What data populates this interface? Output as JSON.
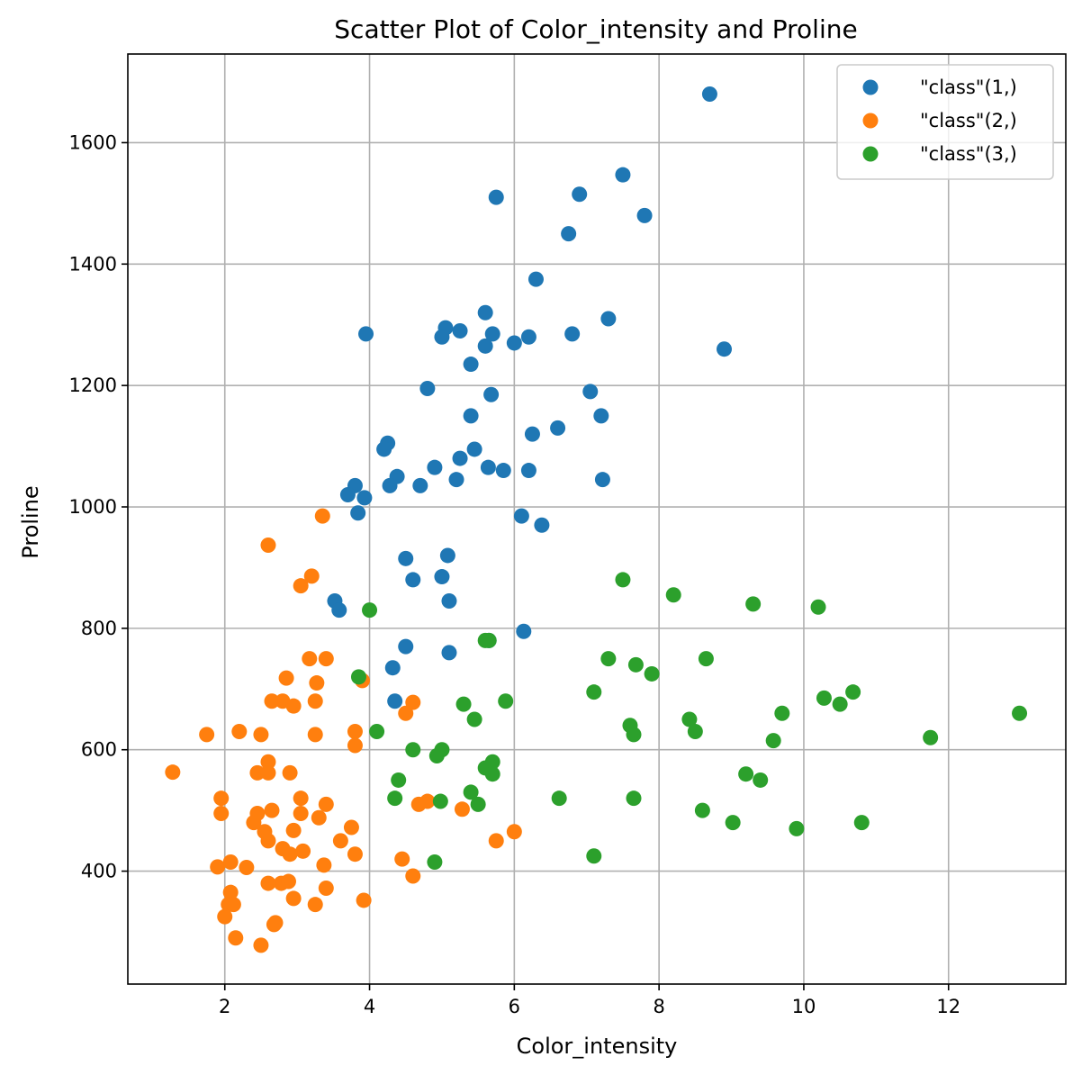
{
  "chart_data": {
    "type": "scatter",
    "title": "Scatter Plot of Color_intensity and Proline",
    "xlabel": "Color_intensity",
    "ylabel": "Proline",
    "xlim": [
      0.66,
      13.62
    ],
    "ylim": [
      214,
      1746
    ],
    "xticks": [
      2,
      4,
      6,
      8,
      10,
      12
    ],
    "yticks": [
      400,
      600,
      800,
      1000,
      1200,
      1400,
      1600
    ],
    "grid": true,
    "legend_position": "top-right",
    "series": [
      {
        "name": "\"class\"(1,)",
        "color": "#1f77b4",
        "points": [
          [
            8.7,
            1680
          ],
          [
            7.5,
            1547
          ],
          [
            6.9,
            1515
          ],
          [
            5.75,
            1510
          ],
          [
            7.8,
            1480
          ],
          [
            6.75,
            1450
          ],
          [
            6.3,
            1375
          ],
          [
            5.6,
            1320
          ],
          [
            7.3,
            1310
          ],
          [
            5.05,
            1295
          ],
          [
            5.25,
            1290
          ],
          [
            3.95,
            1285
          ],
          [
            5.7,
            1285
          ],
          [
            6.8,
            1285
          ],
          [
            5.0,
            1280
          ],
          [
            6.2,
            1280
          ],
          [
            6.0,
            1270
          ],
          [
            5.6,
            1265
          ],
          [
            8.9,
            1260
          ],
          [
            5.4,
            1235
          ],
          [
            4.8,
            1195
          ],
          [
            7.05,
            1190
          ],
          [
            5.68,
            1185
          ],
          [
            5.4,
            1150
          ],
          [
            7.2,
            1150
          ],
          [
            6.6,
            1130
          ],
          [
            6.25,
            1120
          ],
          [
            4.25,
            1105
          ],
          [
            4.2,
            1095
          ],
          [
            5.45,
            1095
          ],
          [
            5.25,
            1080
          ],
          [
            4.9,
            1065
          ],
          [
            5.64,
            1065
          ],
          [
            5.85,
            1060
          ],
          [
            6.2,
            1060
          ],
          [
            4.38,
            1050
          ],
          [
            5.2,
            1045
          ],
          [
            7.22,
            1045
          ],
          [
            4.7,
            1035
          ],
          [
            4.28,
            1035
          ],
          [
            3.8,
            1035
          ],
          [
            3.7,
            1020
          ],
          [
            3.93,
            1015
          ],
          [
            3.84,
            990
          ],
          [
            6.1,
            985
          ],
          [
            6.38,
            970
          ],
          [
            5.08,
            920
          ],
          [
            4.5,
            915
          ],
          [
            5.0,
            885
          ],
          [
            4.6,
            880
          ],
          [
            5.1,
            845
          ],
          [
            3.52,
            845
          ],
          [
            3.58,
            830
          ],
          [
            5.65,
            780
          ],
          [
            6.13,
            795
          ],
          [
            4.5,
            770
          ],
          [
            5.1,
            760
          ],
          [
            4.32,
            735
          ],
          [
            4.35,
            680
          ]
        ]
      },
      {
        "name": "\"class\"(2,)",
        "color": "#ff7f0e",
        "points": [
          [
            3.35,
            985
          ],
          [
            2.6,
            937
          ],
          [
            3.2,
            886
          ],
          [
            3.05,
            870
          ],
          [
            3.17,
            750
          ],
          [
            3.4,
            750
          ],
          [
            2.85,
            718
          ],
          [
            3.27,
            710
          ],
          [
            3.9,
            714
          ],
          [
            2.65,
            680
          ],
          [
            2.8,
            680
          ],
          [
            3.25,
            680
          ],
          [
            2.95,
            672
          ],
          [
            4.6,
            678
          ],
          [
            4.5,
            660
          ],
          [
            1.75,
            625
          ],
          [
            2.2,
            630
          ],
          [
            2.5,
            625
          ],
          [
            3.25,
            625
          ],
          [
            3.8,
            630
          ],
          [
            3.8,
            607
          ],
          [
            1.28,
            563
          ],
          [
            2.45,
            562
          ],
          [
            2.6,
            580
          ],
          [
            2.6,
            562
          ],
          [
            2.9,
            562
          ],
          [
            1.95,
            520
          ],
          [
            3.05,
            520
          ],
          [
            4.8,
            515
          ],
          [
            4.68,
            510
          ],
          [
            3.4,
            510
          ],
          [
            2.65,
            500
          ],
          [
            5.28,
            502
          ],
          [
            1.95,
            495
          ],
          [
            2.45,
            495
          ],
          [
            3.05,
            495
          ],
          [
            3.3,
            488
          ],
          [
            2.4,
            480
          ],
          [
            3.75,
            472
          ],
          [
            2.95,
            467
          ],
          [
            2.55,
            465
          ],
          [
            6.0,
            465
          ],
          [
            2.6,
            450
          ],
          [
            3.6,
            450
          ],
          [
            5.75,
            450
          ],
          [
            2.8,
            437
          ],
          [
            3.08,
            433
          ],
          [
            2.9,
            428
          ],
          [
            3.8,
            428
          ],
          [
            4.45,
            420
          ],
          [
            2.08,
            415
          ],
          [
            1.9,
            407
          ],
          [
            2.3,
            406
          ],
          [
            3.37,
            410
          ],
          [
            4.6,
            392
          ],
          [
            2.78,
            380
          ],
          [
            2.6,
            380
          ],
          [
            2.88,
            383
          ],
          [
            3.4,
            372
          ],
          [
            2.08,
            365
          ],
          [
            2.05,
            345
          ],
          [
            2.12,
            345
          ],
          [
            2.95,
            355
          ],
          [
            3.25,
            345
          ],
          [
            3.92,
            352
          ],
          [
            2.0,
            325
          ],
          [
            2.7,
            315
          ],
          [
            2.68,
            312
          ],
          [
            2.15,
            290
          ],
          [
            2.5,
            278
          ]
        ]
      },
      {
        "name": "\"class\"(3,)",
        "color": "#2ca02c",
        "points": [
          [
            7.5,
            880
          ],
          [
            8.2,
            855
          ],
          [
            9.3,
            840
          ],
          [
            10.2,
            835
          ],
          [
            4.0,
            830
          ],
          [
            5.6,
            780
          ],
          [
            5.65,
            780
          ],
          [
            7.3,
            750
          ],
          [
            8.65,
            750
          ],
          [
            7.68,
            740
          ],
          [
            7.9,
            725
          ],
          [
            3.85,
            720
          ],
          [
            7.1,
            695
          ],
          [
            10.68,
            695
          ],
          [
            10.28,
            685
          ],
          [
            10.5,
            675
          ],
          [
            5.3,
            675
          ],
          [
            5.88,
            680
          ],
          [
            9.7,
            660
          ],
          [
            12.98,
            660
          ],
          [
            5.45,
            650
          ],
          [
            8.42,
            650
          ],
          [
            7.6,
            640
          ],
          [
            4.1,
            630
          ],
          [
            8.5,
            630
          ],
          [
            7.65,
            625
          ],
          [
            11.75,
            620
          ],
          [
            9.58,
            615
          ],
          [
            4.6,
            600
          ],
          [
            5.0,
            600
          ],
          [
            4.93,
            590
          ],
          [
            5.7,
            580
          ],
          [
            5.6,
            570
          ],
          [
            5.7,
            560
          ],
          [
            9.2,
            560
          ],
          [
            4.4,
            550
          ],
          [
            9.4,
            550
          ],
          [
            5.4,
            530
          ],
          [
            4.35,
            520
          ],
          [
            6.62,
            520
          ],
          [
            7.65,
            520
          ],
          [
            4.98,
            515
          ],
          [
            5.5,
            510
          ],
          [
            8.6,
            500
          ],
          [
            9.02,
            480
          ],
          [
            10.8,
            480
          ],
          [
            9.9,
            470
          ],
          [
            7.1,
            425
          ],
          [
            4.9,
            415
          ]
        ]
      }
    ]
  }
}
